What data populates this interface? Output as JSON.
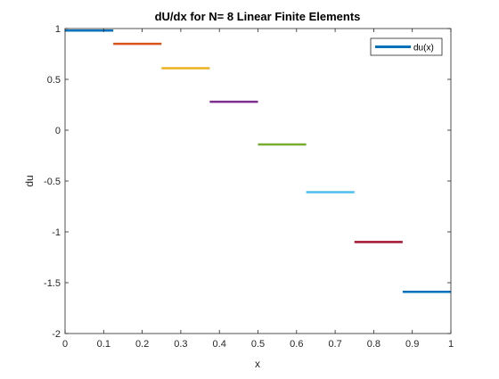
{
  "chart_data": {
    "type": "line",
    "title": "dU/dx for N= 8 Linear Finite Elements",
    "xlabel": "x",
    "ylabel": "du",
    "xlim": [
      0,
      1
    ],
    "ylim": [
      -2,
      1
    ],
    "xticks": [
      0,
      0.1,
      0.2,
      0.3,
      0.4,
      0.5,
      0.6,
      0.7,
      0.8,
      0.9,
      1
    ],
    "xtick_labels": [
      "0",
      "0.1",
      "0.2",
      "0.3",
      "0.4",
      "0.5",
      "0.6",
      "0.7",
      "0.8",
      "0.9",
      "1"
    ],
    "yticks": [
      1,
      0.5,
      0,
      -0.5,
      -1,
      -1.5,
      -2
    ],
    "ytick_labels": [
      "1",
      "0.5",
      "0",
      "-0.5",
      "-1",
      "-1.5",
      "-2"
    ],
    "grid": false,
    "legend": {
      "entries": [
        "du(x)"
      ],
      "placement": "top-right"
    },
    "series": [
      {
        "name": "du(x)",
        "color": "#0072BD",
        "x": [
          0,
          0.125
        ],
        "y": [
          0.98,
          0.98
        ]
      },
      {
        "color": "#D95319",
        "x": [
          0.125,
          0.25
        ],
        "y": [
          0.85,
          0.85
        ]
      },
      {
        "color": "#EDB120",
        "x": [
          0.25,
          0.375
        ],
        "y": [
          0.61,
          0.61
        ]
      },
      {
        "color": "#7E2F8E",
        "x": [
          0.375,
          0.5
        ],
        "y": [
          0.28,
          0.28
        ]
      },
      {
        "color": "#77AC30",
        "x": [
          0.5,
          0.625
        ],
        "y": [
          -0.14,
          -0.14
        ]
      },
      {
        "color": "#4DBEEE",
        "x": [
          0.625,
          0.75
        ],
        "y": [
          -0.61,
          -0.61
        ]
      },
      {
        "color": "#A2142F",
        "x": [
          0.75,
          0.875
        ],
        "y": [
          -1.1,
          -1.1
        ]
      },
      {
        "color": "#0072BD",
        "x": [
          0.875,
          1.0
        ],
        "y": [
          -1.59,
          -1.59
        ]
      }
    ]
  }
}
